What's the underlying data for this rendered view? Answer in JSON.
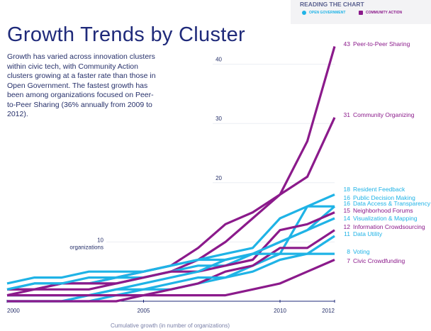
{
  "title": "Growth Trends by Cluster",
  "description": "Growth has varied across innovation clusters within civic tech, with Community Action clusters growing at a faster rate than those in Open Government. The fastest growth has been among organizations focused on Peer-to-Peer Sharing (36% annually from 2009 to 2012).",
  "legend": {
    "heading": "READING THE CHART",
    "items": [
      {
        "label": "OPEN GOVERNMENT",
        "color": "#1fb3e6"
      },
      {
        "label": "COMMUNITY ACTION",
        "color": "#8b1a8b"
      }
    ]
  },
  "chart_data": {
    "type": "line",
    "title": "Growth Trends by Cluster",
    "xlabel": "Cumulative growth (in number of organizations)",
    "ylabel": "",
    "unit_label": "organizations",
    "x": [
      2000,
      2001,
      2002,
      2003,
      2004,
      2005,
      2006,
      2007,
      2008,
      2009,
      2010,
      2011,
      2012
    ],
    "x_ticks": [
      "2000",
      "2005",
      "2010",
      "2012"
    ],
    "y_ticks": [
      "10",
      "20",
      "30",
      "40"
    ],
    "ylim": [
      0,
      45
    ],
    "grid": true,
    "series": [
      {
        "name": "Peer-to-Peer Sharing",
        "group": "COMMUNITY ACTION",
        "end": "43",
        "values": [
          1,
          2,
          2,
          2,
          3,
          4,
          5,
          7,
          10,
          14,
          18,
          27,
          43
        ]
      },
      {
        "name": "Community Organizing",
        "group": "COMMUNITY ACTION",
        "end": "31",
        "values": [
          2,
          2,
          3,
          3,
          4,
          5,
          6,
          9,
          13,
          15,
          18,
          21,
          31
        ]
      },
      {
        "name": "Resident Feedback",
        "group": "OPEN GOVERNMENT",
        "end": "18",
        "values": [
          3,
          4,
          4,
          5,
          5,
          5,
          6,
          7,
          8,
          9,
          14,
          16,
          18
        ]
      },
      {
        "name": "Public Decision Making",
        "group": "OPEN GOVERNMENT",
        "end": "16",
        "values": [
          2,
          3,
          3,
          3,
          4,
          4,
          5,
          6,
          6,
          8,
          10,
          12,
          16
        ]
      },
      {
        "name": "Data Access & Transparency",
        "group": "OPEN GOVERNMENT",
        "end": "16",
        "values": [
          0,
          0,
          0,
          0,
          1,
          2,
          2,
          3,
          4,
          6,
          8,
          16,
          16
        ]
      },
      {
        "name": "Neighborhood Forums",
        "group": "COMMUNITY ACTION",
        "end": "15",
        "values": [
          2,
          2,
          3,
          3,
          3,
          4,
          5,
          5,
          6,
          7,
          12,
          13,
          15
        ]
      },
      {
        "name": "Visualization & Mapping",
        "group": "OPEN GOVERNMENT",
        "end": "14",
        "values": [
          0,
          0,
          0,
          1,
          2,
          3,
          4,
          5,
          7,
          8,
          10,
          12,
          14
        ]
      },
      {
        "name": "Information Crowdsourcing",
        "group": "COMMUNITY ACTION",
        "end": "12",
        "values": [
          0,
          0,
          0,
          0,
          0,
          1,
          2,
          3,
          5,
          6,
          9,
          9,
          12
        ]
      },
      {
        "name": "Data Utility",
        "group": "OPEN GOVERNMENT",
        "end": "11",
        "values": [
          1,
          1,
          1,
          1,
          2,
          2,
          3,
          4,
          4,
          5,
          7,
          8,
          11
        ]
      },
      {
        "name": "Voting",
        "group": "OPEN GOVERNMENT",
        "end": "8",
        "values": [
          2,
          3,
          3,
          4,
          4,
          5,
          6,
          7,
          7,
          8,
          8,
          8,
          8
        ]
      },
      {
        "name": "Civic Crowdfunding",
        "group": "COMMUNITY ACTION",
        "end": "7",
        "values": [
          1,
          1,
          1,
          1,
          1,
          1,
          1,
          1,
          1,
          2,
          3,
          5,
          7
        ]
      }
    ]
  }
}
